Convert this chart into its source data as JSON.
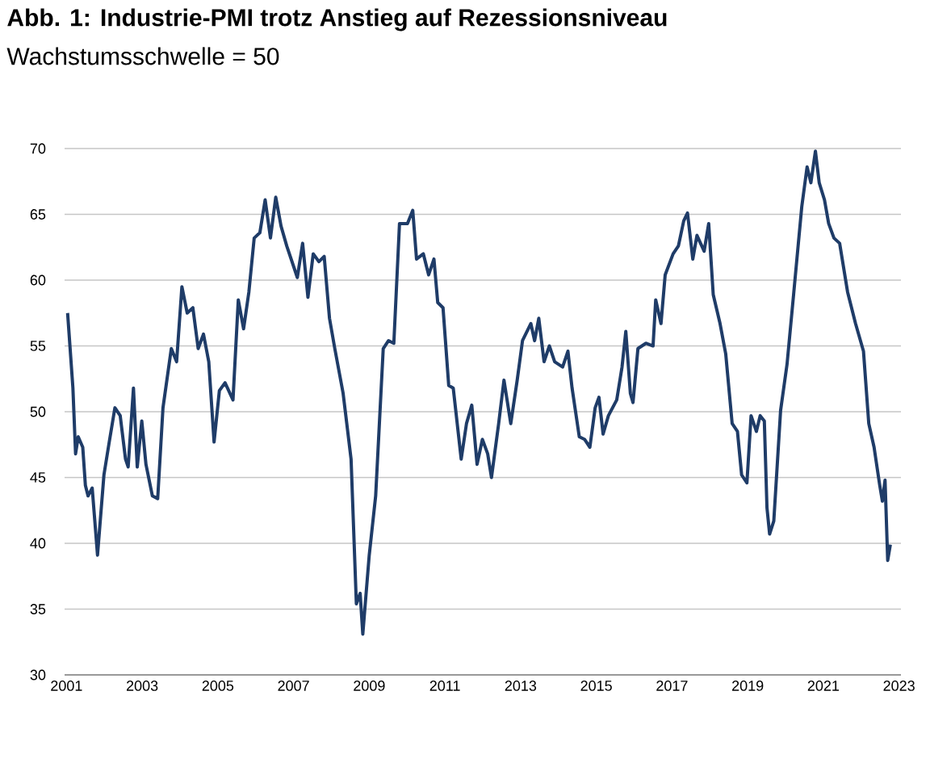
{
  "chart_data": {
    "type": "line",
    "title": "Abb. 1: Industrie-PMI trotz Anstieg auf Rezessionsniveau",
    "subtitle": "Wachstumsschwelle = 50",
    "x": [
      2001.03,
      2001.17,
      2001.24,
      2001.31,
      2001.43,
      2001.5,
      2001.57,
      2001.68,
      2001.82,
      2001.99,
      2002.13,
      2002.28,
      2002.42,
      2002.56,
      2002.63,
      2002.77,
      2002.87,
      2002.99,
      2003.1,
      2003.27,
      2003.41,
      2003.55,
      2003.77,
      2003.91,
      2004.05,
      2004.19,
      2004.34,
      2004.48,
      2004.62,
      2004.76,
      2004.9,
      2005.04,
      2005.19,
      2005.4,
      2005.54,
      2005.68,
      2005.82,
      2005.96,
      2006.11,
      2006.25,
      2006.39,
      2006.53,
      2006.67,
      2006.82,
      2006.96,
      2007.1,
      2007.24,
      2007.38,
      2007.52,
      2007.67,
      2007.81,
      2007.95,
      2008.09,
      2008.31,
      2008.52,
      2008.66,
      2008.76,
      2008.83,
      2009.0,
      2009.17,
      2009.37,
      2009.51,
      2009.65,
      2009.8,
      2010.01,
      2010.15,
      2010.25,
      2010.43,
      2010.57,
      2010.71,
      2010.81,
      2010.95,
      2011.1,
      2011.22,
      2011.43,
      2011.57,
      2011.71,
      2011.85,
      2011.99,
      2012.13,
      2012.23,
      2012.42,
      2012.56,
      2012.74,
      2012.91,
      2013.05,
      2013.27,
      2013.37,
      2013.48,
      2013.62,
      2013.76,
      2013.9,
      2014.11,
      2014.25,
      2014.36,
      2014.55,
      2014.69,
      2014.83,
      2014.97,
      2015.07,
      2015.18,
      2015.32,
      2015.54,
      2015.68,
      2015.78,
      2015.9,
      2015.97,
      2016.1,
      2016.31,
      2016.5,
      2016.57,
      2016.71,
      2016.82,
      2017.03,
      2017.17,
      2017.31,
      2017.41,
      2017.55,
      2017.66,
      2017.85,
      2017.97,
      2018.09,
      2018.27,
      2018.42,
      2018.59,
      2018.73,
      2018.84,
      2018.98,
      2019.09,
      2019.23,
      2019.33,
      2019.44,
      2019.51,
      2019.58,
      2019.69,
      2019.87,
      2020.04,
      2020.22,
      2020.43,
      2020.57,
      2020.67,
      2020.79,
      2020.89,
      2021.03,
      2021.14,
      2021.28,
      2021.43,
      2021.64,
      2021.85,
      2022.06,
      2022.2,
      2022.34,
      2022.49,
      2022.56,
      2022.63,
      2022.7,
      2022.77
    ],
    "values": [
      57.5,
      51.8,
      46.8,
      48.1,
      47.3,
      44.4,
      43.6,
      44.2,
      39.1,
      45.2,
      47.7,
      50.3,
      49.7,
      46.4,
      45.8,
      51.8,
      45.8,
      49.3,
      46.0,
      43.6,
      43.4,
      50.3,
      54.8,
      53.8,
      59.5,
      57.5,
      57.9,
      54.8,
      55.9,
      53.8,
      47.7,
      51.6,
      52.2,
      50.9,
      58.5,
      56.3,
      59.1,
      63.2,
      63.6,
      66.1,
      63.2,
      66.3,
      64.1,
      62.6,
      61.4,
      60.2,
      62.8,
      58.7,
      62.0,
      61.4,
      61.8,
      57.1,
      54.8,
      51.4,
      46.4,
      35.4,
      36.2,
      33.1,
      39.1,
      43.6,
      54.8,
      55.4,
      55.2,
      64.3,
      64.3,
      65.3,
      61.6,
      62.0,
      60.4,
      61.6,
      58.3,
      57.9,
      52.0,
      51.8,
      46.4,
      49.1,
      50.5,
      46.0,
      47.9,
      46.8,
      45.0,
      49.1,
      52.4,
      49.1,
      52.4,
      55.4,
      56.7,
      55.4,
      57.1,
      53.8,
      55.0,
      53.8,
      53.4,
      54.6,
      51.8,
      48.1,
      47.9,
      47.3,
      50.3,
      51.1,
      48.3,
      49.7,
      50.9,
      53.4,
      56.1,
      51.4,
      50.7,
      54.8,
      55.2,
      55.0,
      58.5,
      56.7,
      60.4,
      62.0,
      62.6,
      64.5,
      65.1,
      61.6,
      63.4,
      62.2,
      64.3,
      58.9,
      56.7,
      54.4,
      49.1,
      48.5,
      45.2,
      44.6,
      49.7,
      48.5,
      49.7,
      49.3,
      42.7,
      40.7,
      41.7,
      50.1,
      53.6,
      59.1,
      65.6,
      68.6,
      67.4,
      69.8,
      67.4,
      66.1,
      64.3,
      63.2,
      62.8,
      59.1,
      56.7,
      54.6,
      49.1,
      47.3,
      44.4,
      43.2,
      44.8,
      38.7,
      39.9
    ],
    "color": "#1f3c68",
    "xlim": [
      2000.95,
      2023.05
    ],
    "xticks": [
      2001,
      2003,
      2005,
      2007,
      2009,
      2011,
      2013,
      2015,
      2017,
      2019,
      2021,
      2023
    ],
    "ylim": [
      30,
      70
    ],
    "yticks": [
      30,
      35,
      40,
      45,
      50,
      55,
      60,
      65,
      70
    ],
    "grid": "y",
    "marker": "none",
    "line_style": "solid"
  }
}
